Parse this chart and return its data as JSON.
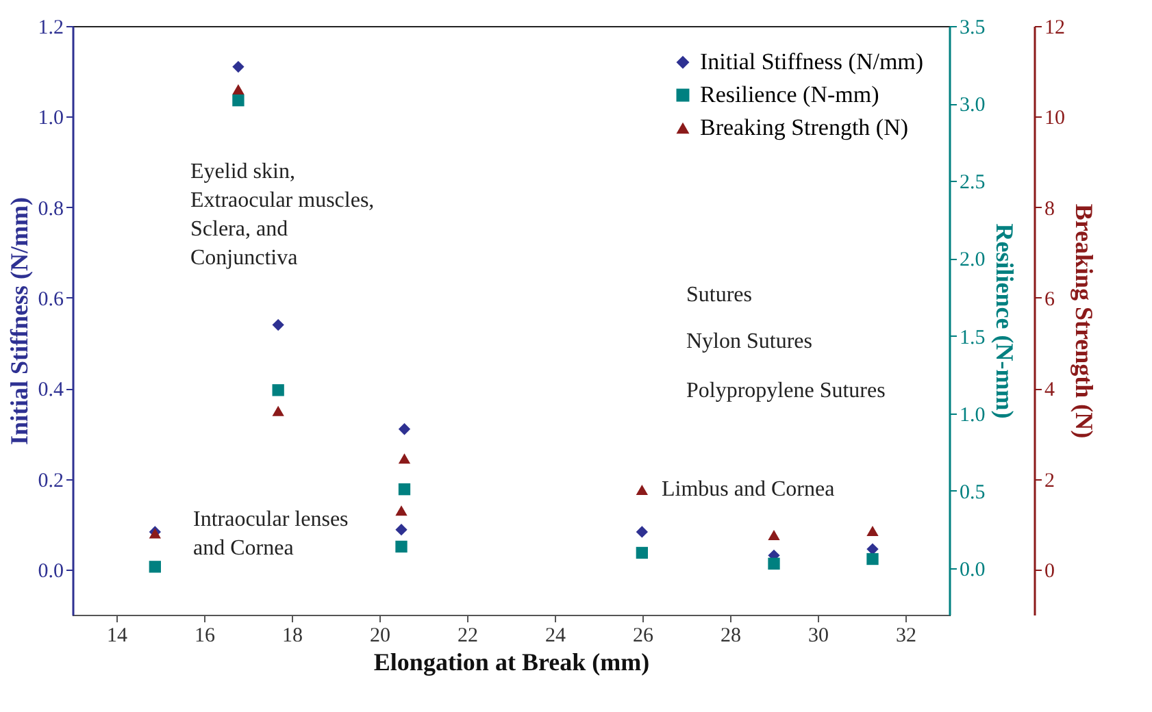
{
  "chart_data": {
    "type": "scatter",
    "xlabel": "Elongation at Break (mm)",
    "ylabel": "Initial Stiffness (N/mm)",
    "y2label": "Resilience (N-mm)",
    "y3label": "Breaking Strength (N)",
    "xlim": [
      13,
      33
    ],
    "xticks": [
      14,
      16,
      18,
      20,
      22,
      24,
      26,
      28,
      30,
      32
    ],
    "ylim": [
      -0.1,
      1.2
    ],
    "yticks": [
      {
        "value": 0,
        "label": "0.0"
      },
      {
        "value": 0.2,
        "label": "0.2"
      },
      {
        "value": 0.4,
        "label": "0.4"
      },
      {
        "value": 0.6,
        "label": "0.6"
      },
      {
        "value": 0.8,
        "label": "0.8"
      },
      {
        "value": 1.0,
        "label": "1.0"
      },
      {
        "value": 1.2,
        "label": "1.2"
      }
    ],
    "y2lim": [
      -0.3,
      3.5
    ],
    "y2ticks": [
      {
        "value": 0,
        "label": "0.0"
      },
      {
        "value": 0.5,
        "label": "0.5"
      },
      {
        "value": 1.0,
        "label": "1.0"
      },
      {
        "value": 1.5,
        "label": "1.5"
      },
      {
        "value": 2.0,
        "label": "2.0"
      },
      {
        "value": 2.5,
        "label": "2.5"
      },
      {
        "value": 3.0,
        "label": "3.0"
      },
      {
        "value": 3.5,
        "label": "3.5"
      }
    ],
    "y3lim": [
      -1,
      12
    ],
    "y3ticks": [
      0,
      2,
      4,
      6,
      8,
      10,
      12
    ],
    "grid": false,
    "legend": "top right",
    "series": [
      {
        "name": "Initial Stiffness (N/mm)",
        "color": "#2e3192",
        "marker": "diamond",
        "axis": "y",
        "x": [
          14.88,
          16.78,
          17.69,
          20.57,
          20.5,
          25.99,
          29.0,
          31.25
        ],
        "values": [
          0.083,
          1.11,
          0.54,
          0.31,
          0.088,
          0.083,
          0.031,
          0.045
        ]
      },
      {
        "name": "Resilience (N-mm)",
        "color": "#008080",
        "marker": "square",
        "axis": "y2",
        "x": [
          14.88,
          16.78,
          17.69,
          20.57,
          20.5,
          25.99,
          29.0,
          31.25
        ],
        "values": [
          0.01,
          3.02,
          1.15,
          0.51,
          0.14,
          0.1,
          0.03,
          0.06
        ]
      },
      {
        "name": "Breaking Strength (N)",
        "color": "#8b1a1a",
        "marker": "triangle",
        "axis": "y3",
        "x": [
          14.88,
          16.78,
          17.69,
          20.57,
          20.5,
          25.99,
          29.0,
          31.25
        ],
        "values": [
          0.8,
          10.6,
          3.5,
          2.45,
          1.3,
          1.76,
          0.76,
          0.85
        ]
      }
    ],
    "annotations": [
      "Eyelid skin,\nExtraocular muscles,\nSclera, and\nConjunctiva",
      "Intraocular lenses\nand Cornea",
      "Limbus and Cornea",
      "Sutures",
      "Nylon Sutures",
      "Polypropylene Sutures"
    ]
  }
}
